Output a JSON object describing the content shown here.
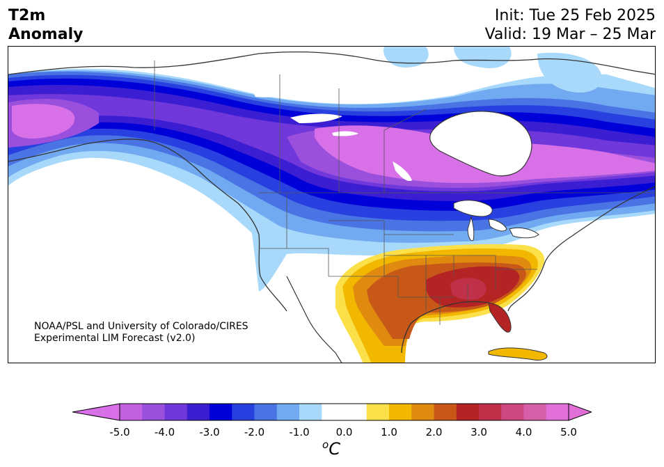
{
  "header": {
    "title_line1": "T2m",
    "title_line2": "Anomaly",
    "init_label": "Init: Tue 25 Feb 2025",
    "valid_label": "Valid: 19 Mar – 25 Mar"
  },
  "credit": {
    "line1": "NOAA/PSL and University of Colorado/CIRES",
    "line2": "Experimental LIM Forecast (v2.0)"
  },
  "colorbar": {
    "units_base": "C",
    "units_sup": "o",
    "tick_labels": [
      "-5.0",
      "-4.0",
      "-3.0",
      "-2.0",
      "-1.0",
      "0.0",
      "1.0",
      "2.0",
      "3.0",
      "4.0",
      "5.0"
    ],
    "bins": [
      {
        "range": "-5.0 to -4.5",
        "color": "#c260df"
      },
      {
        "range": "-4.5 to -4.0",
        "color": "#9a50dc"
      },
      {
        "range": "-4.0 to -3.5",
        "color": "#7038da"
      },
      {
        "range": "-3.5 to -3.0",
        "color": "#3c1ed2"
      },
      {
        "range": "-3.0 to -2.5",
        "color": "#0000d8"
      },
      {
        "range": "-2.5 to -2.0",
        "color": "#2840e0"
      },
      {
        "range": "-2.0 to -1.5",
        "color": "#4a74e4"
      },
      {
        "range": "-1.5 to -1.0",
        "color": "#72aaf2"
      },
      {
        "range": "-1.0 to -0.5",
        "color": "#a8d8fa"
      },
      {
        "range": "-0.5 to 0.0",
        "color": "#ffffff"
      },
      {
        "range": "0.0 to 0.5",
        "color": "#ffffff"
      },
      {
        "range": "0.5 to 1.0",
        "color": "#fbe04a"
      },
      {
        "range": "1.0 to 1.5",
        "color": "#f2b800"
      },
      {
        "range": "1.5 to 2.0",
        "color": "#e08a10"
      },
      {
        "range": "2.0 to 2.5",
        "color": "#c85818"
      },
      {
        "range": "2.5 to 3.0",
        "color": "#b42424"
      },
      {
        "range": "3.0 to 3.5",
        "color": "#c03048"
      },
      {
        "range": "3.5 to 4.0",
        "color": "#cc4880"
      },
      {
        "range": "4.0 to 4.5",
        "color": "#d860aa"
      },
      {
        "range": "4.5 to 5.0",
        "color": "#e070d8"
      }
    ],
    "under_color": "#d870e8",
    "over_color": "#e070d8"
  },
  "map": {
    "region": "North America",
    "ocean_color": "#ffffff",
    "coast_color": "#333333"
  }
}
